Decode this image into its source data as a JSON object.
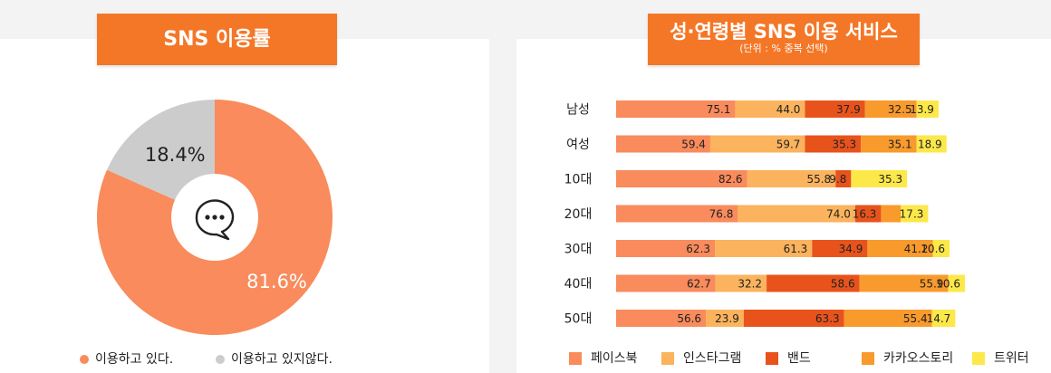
{
  "left_panel": {
    "title": "SNS 이용률",
    "legend": [
      {
        "label": "이용하고 있다.",
        "color": "#f98b5c"
      },
      {
        "label": "이용하고 있지않다.",
        "color": "#cccccc"
      }
    ]
  },
  "right_panel": {
    "title": "성·연령별 SNS 이용 서비스",
    "subtitle": "(단위 : % 중복 선택)"
  },
  "chart_data": [
    {
      "type": "pie",
      "donut": true,
      "center_icon": "chat-bubble-icon",
      "slices": [
        {
          "label": "이용하고 있다.",
          "value": 81.6,
          "display": "81.6%",
          "color": "#f98b5c"
        },
        {
          "label": "이용하고 있지않다.",
          "value": 18.4,
          "display": "18.4%",
          "color": "#cccccc"
        }
      ]
    },
    {
      "type": "bar",
      "orientation": "horizontal",
      "stacked": true,
      "categories": [
        "남성",
        "여성",
        "10대",
        "20대",
        "30대",
        "40대",
        "50대"
      ],
      "series": [
        {
          "name": "페이스북",
          "color": "#f98b5c",
          "values": [
            75.1,
            59.4,
            82.6,
            76.8,
            62.3,
            62.7,
            56.6
          ]
        },
        {
          "name": "인스타그램",
          "color": "#fbb35d",
          "values": [
            44.0,
            59.7,
            55.8,
            74.0,
            61.3,
            32.2,
            23.9
          ]
        },
        {
          "name": "밴드",
          "color": "#e8531c",
          "values": [
            37.9,
            35.3,
            9.8,
            16.3,
            34.9,
            58.6,
            63.3
          ]
        },
        {
          "name": "카카오스토리",
          "color": "#f89a2c",
          "values": [
            32.5,
            35.1,
            0,
            12.4,
            41.2,
            55.9,
            55.4
          ]
        },
        {
          "name": "트위터",
          "color": "#fde84a",
          "values": [
            13.9,
            18.9,
            35.3,
            17.3,
            10.6,
            10.6,
            14.7
          ]
        }
      ],
      "hidden_labels": [
        [
          3,
          3
        ]
      ],
      "legend_position": "bottom"
    }
  ]
}
